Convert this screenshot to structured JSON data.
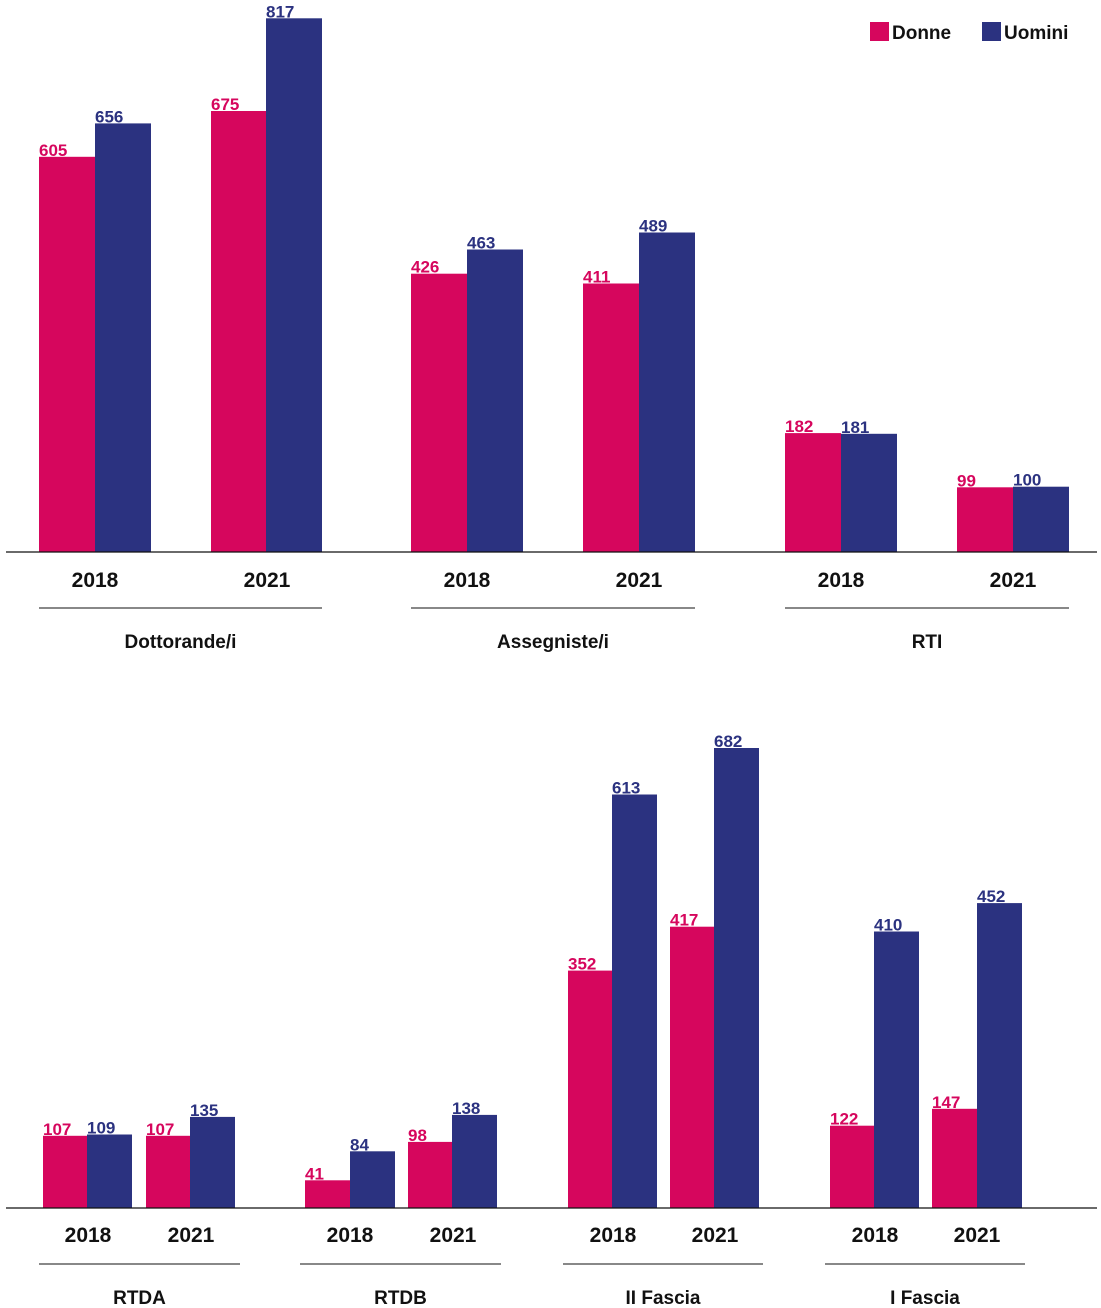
{
  "chart_data": {
    "type": "bar",
    "legend": {
      "position": "top-right"
    },
    "series_colors": {
      "Donne": "#d6065d",
      "Uomini": "#2b3280"
    },
    "panels": [
      {
        "groups": [
          {
            "label": "Dottorande/i",
            "years": [
              "2018",
              "2021"
            ],
            "series": [
              {
                "name": "Donne",
                "values": [
                  605,
                  675
                ]
              },
              {
                "name": "Uomini",
                "values": [
                  656,
                  817
                ]
              }
            ]
          },
          {
            "label": "Assegniste/i",
            "years": [
              "2018",
              "2021"
            ],
            "series": [
              {
                "name": "Donne",
                "values": [
                  426,
                  411
                ]
              },
              {
                "name": "Uomini",
                "values": [
                  463,
                  489
                ]
              }
            ]
          },
          {
            "label": "RTI",
            "years": [
              "2018",
              "2021"
            ],
            "series": [
              {
                "name": "Donne",
                "values": [
                  182,
                  99
                ]
              },
              {
                "name": "Uomini",
                "values": [
                  181,
                  100
                ]
              }
            ]
          }
        ]
      },
      {
        "groups": [
          {
            "label": "RTDA",
            "years": [
              "2018",
              "2021"
            ],
            "series": [
              {
                "name": "Donne",
                "values": [
                  107,
                  107
                ]
              },
              {
                "name": "Uomini",
                "values": [
                  109,
                  135
                ]
              }
            ]
          },
          {
            "label": "RTDB",
            "years": [
              "2018",
              "2021"
            ],
            "series": [
              {
                "name": "Donne",
                "values": [
                  41,
                  98
                ]
              },
              {
                "name": "Uomini",
                "values": [
                  84,
                  138
                ]
              }
            ]
          },
          {
            "label": "II Fascia",
            "years": [
              "2018",
              "2021"
            ],
            "series": [
              {
                "name": "Donne",
                "values": [
                  352,
                  417
                ]
              },
              {
                "name": "Uomini",
                "values": [
                  613,
                  682
                ]
              }
            ]
          },
          {
            "label": "I Fascia",
            "years": [
              "2018",
              "2021"
            ],
            "series": [
              {
                "name": "Donne",
                "values": [
                  122,
                  147
                ]
              },
              {
                "name": "Uomini",
                "values": [
                  410,
                  452
                ]
              }
            ]
          }
        ]
      }
    ]
  }
}
